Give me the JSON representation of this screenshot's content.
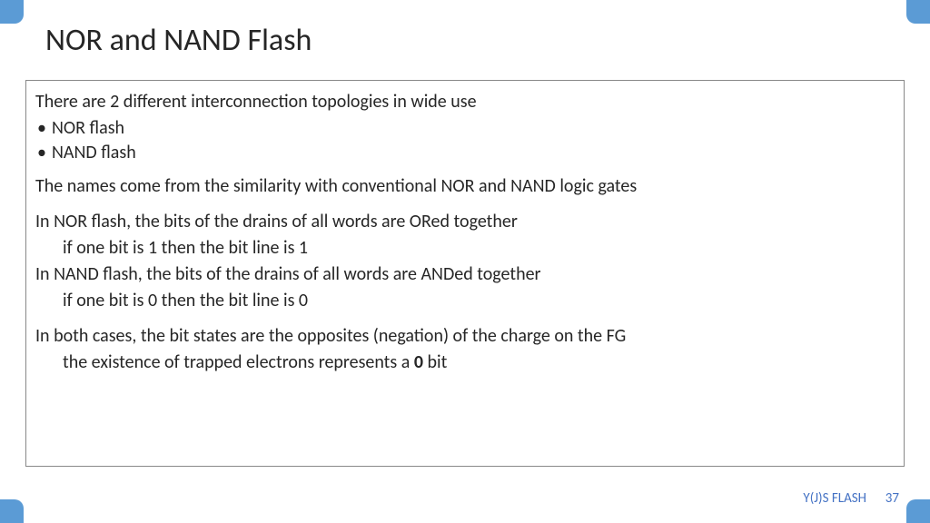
{
  "title": "NOR and NAND Flash",
  "intro": "There are 2 different interconnection topologies in wide use",
  "bullets": [
    "NOR flash",
    "NAND flash"
  ],
  "p1": "The names come from the similarity with conventional NOR and NAND logic gates",
  "p2a": "In NOR flash, the bits of the drains of all words are ORed together",
  "p2b": "if one bit is 1 then the bit line is 1",
  "p3a": "In NAND flash, the bits of the drains of all words are ANDed together",
  "p3b": "if one bit is 0 then the bit line is 0",
  "p4a": "In both cases, the bit states are the opposites (negation) of the charge on the FG",
  "p4b_pre": "the existence of trapped electrons represents a ",
  "p4b_bold": "0",
  "p4b_post": " bit",
  "footer_label": "Y(J)S  FLASH",
  "footer_num": "37",
  "colors": {
    "accent": "#5b9bd5",
    "footer_text": "#4472c4",
    "border": "#888888",
    "text": "#262626",
    "background": "#ffffff"
  }
}
